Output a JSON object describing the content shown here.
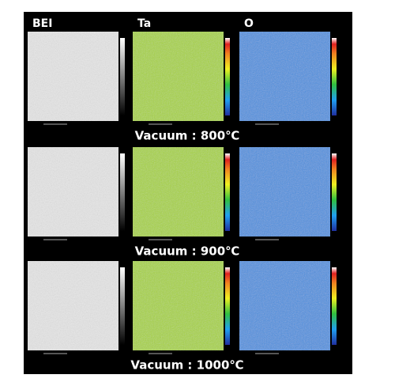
{
  "headers": [
    "BEI",
    "Ta",
    "O"
  ],
  "rows": [
    {
      "label": "Vacuum : 800℃"
    },
    {
      "label": "Vacuum : 900℃"
    },
    {
      "label": "Vacuum : 1000℃"
    }
  ]
}
